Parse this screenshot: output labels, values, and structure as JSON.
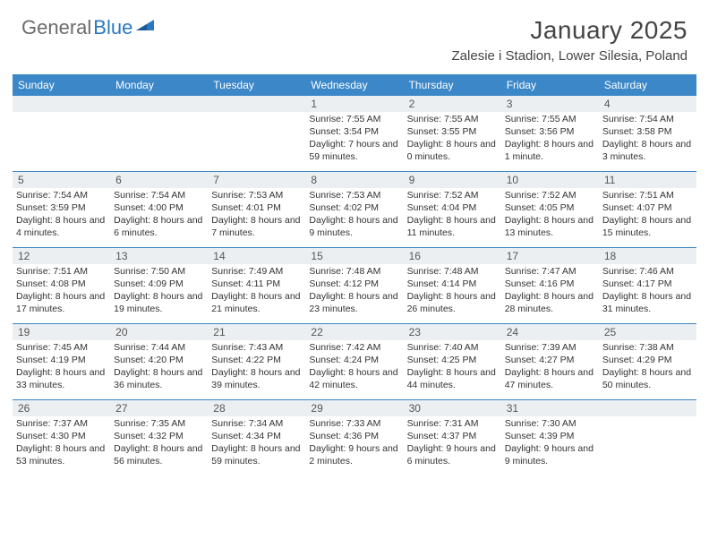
{
  "logo": {
    "text1": "General",
    "text2": "Blue"
  },
  "title": "January 2025",
  "location": "Zalesie i Stadion, Lower Silesia, Poland",
  "colors": {
    "header_blue": "#3b87c8",
    "logo_blue": "#2b78c2",
    "daynum_bg": "#eceff1",
    "text": "#333333",
    "border": "#3b87c8",
    "background": "#ffffff"
  },
  "fonts": {
    "title_size_pt": 21,
    "location_size_pt": 11,
    "dow_size_pt": 9,
    "cell_size_pt": 8,
    "daynum_size_pt": 9
  },
  "days_of_week": [
    "Sunday",
    "Monday",
    "Tuesday",
    "Wednesday",
    "Thursday",
    "Friday",
    "Saturday"
  ],
  "weeks": [
    [
      null,
      null,
      null,
      {
        "n": "1",
        "sunrise": "7:55 AM",
        "sunset": "3:54 PM",
        "daylight": "7 hours and 59 minutes."
      },
      {
        "n": "2",
        "sunrise": "7:55 AM",
        "sunset": "3:55 PM",
        "daylight": "8 hours and 0 minutes."
      },
      {
        "n": "3",
        "sunrise": "7:55 AM",
        "sunset": "3:56 PM",
        "daylight": "8 hours and 1 minute."
      },
      {
        "n": "4",
        "sunrise": "7:54 AM",
        "sunset": "3:58 PM",
        "daylight": "8 hours and 3 minutes."
      }
    ],
    [
      {
        "n": "5",
        "sunrise": "7:54 AM",
        "sunset": "3:59 PM",
        "daylight": "8 hours and 4 minutes."
      },
      {
        "n": "6",
        "sunrise": "7:54 AM",
        "sunset": "4:00 PM",
        "daylight": "8 hours and 6 minutes."
      },
      {
        "n": "7",
        "sunrise": "7:53 AM",
        "sunset": "4:01 PM",
        "daylight": "8 hours and 7 minutes."
      },
      {
        "n": "8",
        "sunrise": "7:53 AM",
        "sunset": "4:02 PM",
        "daylight": "8 hours and 9 minutes."
      },
      {
        "n": "9",
        "sunrise": "7:52 AM",
        "sunset": "4:04 PM",
        "daylight": "8 hours and 11 minutes."
      },
      {
        "n": "10",
        "sunrise": "7:52 AM",
        "sunset": "4:05 PM",
        "daylight": "8 hours and 13 minutes."
      },
      {
        "n": "11",
        "sunrise": "7:51 AM",
        "sunset": "4:07 PM",
        "daylight": "8 hours and 15 minutes."
      }
    ],
    [
      {
        "n": "12",
        "sunrise": "7:51 AM",
        "sunset": "4:08 PM",
        "daylight": "8 hours and 17 minutes."
      },
      {
        "n": "13",
        "sunrise": "7:50 AM",
        "sunset": "4:09 PM",
        "daylight": "8 hours and 19 minutes."
      },
      {
        "n": "14",
        "sunrise": "7:49 AM",
        "sunset": "4:11 PM",
        "daylight": "8 hours and 21 minutes."
      },
      {
        "n": "15",
        "sunrise": "7:48 AM",
        "sunset": "4:12 PM",
        "daylight": "8 hours and 23 minutes."
      },
      {
        "n": "16",
        "sunrise": "7:48 AM",
        "sunset": "4:14 PM",
        "daylight": "8 hours and 26 minutes."
      },
      {
        "n": "17",
        "sunrise": "7:47 AM",
        "sunset": "4:16 PM",
        "daylight": "8 hours and 28 minutes."
      },
      {
        "n": "18",
        "sunrise": "7:46 AM",
        "sunset": "4:17 PM",
        "daylight": "8 hours and 31 minutes."
      }
    ],
    [
      {
        "n": "19",
        "sunrise": "7:45 AM",
        "sunset": "4:19 PM",
        "daylight": "8 hours and 33 minutes."
      },
      {
        "n": "20",
        "sunrise": "7:44 AM",
        "sunset": "4:20 PM",
        "daylight": "8 hours and 36 minutes."
      },
      {
        "n": "21",
        "sunrise": "7:43 AM",
        "sunset": "4:22 PM",
        "daylight": "8 hours and 39 minutes."
      },
      {
        "n": "22",
        "sunrise": "7:42 AM",
        "sunset": "4:24 PM",
        "daylight": "8 hours and 42 minutes."
      },
      {
        "n": "23",
        "sunrise": "7:40 AM",
        "sunset": "4:25 PM",
        "daylight": "8 hours and 44 minutes."
      },
      {
        "n": "24",
        "sunrise": "7:39 AM",
        "sunset": "4:27 PM",
        "daylight": "8 hours and 47 minutes."
      },
      {
        "n": "25",
        "sunrise": "7:38 AM",
        "sunset": "4:29 PM",
        "daylight": "8 hours and 50 minutes."
      }
    ],
    [
      {
        "n": "26",
        "sunrise": "7:37 AM",
        "sunset": "4:30 PM",
        "daylight": "8 hours and 53 minutes."
      },
      {
        "n": "27",
        "sunrise": "7:35 AM",
        "sunset": "4:32 PM",
        "daylight": "8 hours and 56 minutes."
      },
      {
        "n": "28",
        "sunrise": "7:34 AM",
        "sunset": "4:34 PM",
        "daylight": "8 hours and 59 minutes."
      },
      {
        "n": "29",
        "sunrise": "7:33 AM",
        "sunset": "4:36 PM",
        "daylight": "9 hours and 2 minutes."
      },
      {
        "n": "30",
        "sunrise": "7:31 AM",
        "sunset": "4:37 PM",
        "daylight": "9 hours and 6 minutes."
      },
      {
        "n": "31",
        "sunrise": "7:30 AM",
        "sunset": "4:39 PM",
        "daylight": "9 hours and 9 minutes."
      },
      null
    ]
  ],
  "labels": {
    "sunrise": "Sunrise:",
    "sunset": "Sunset:",
    "daylight": "Daylight:"
  }
}
